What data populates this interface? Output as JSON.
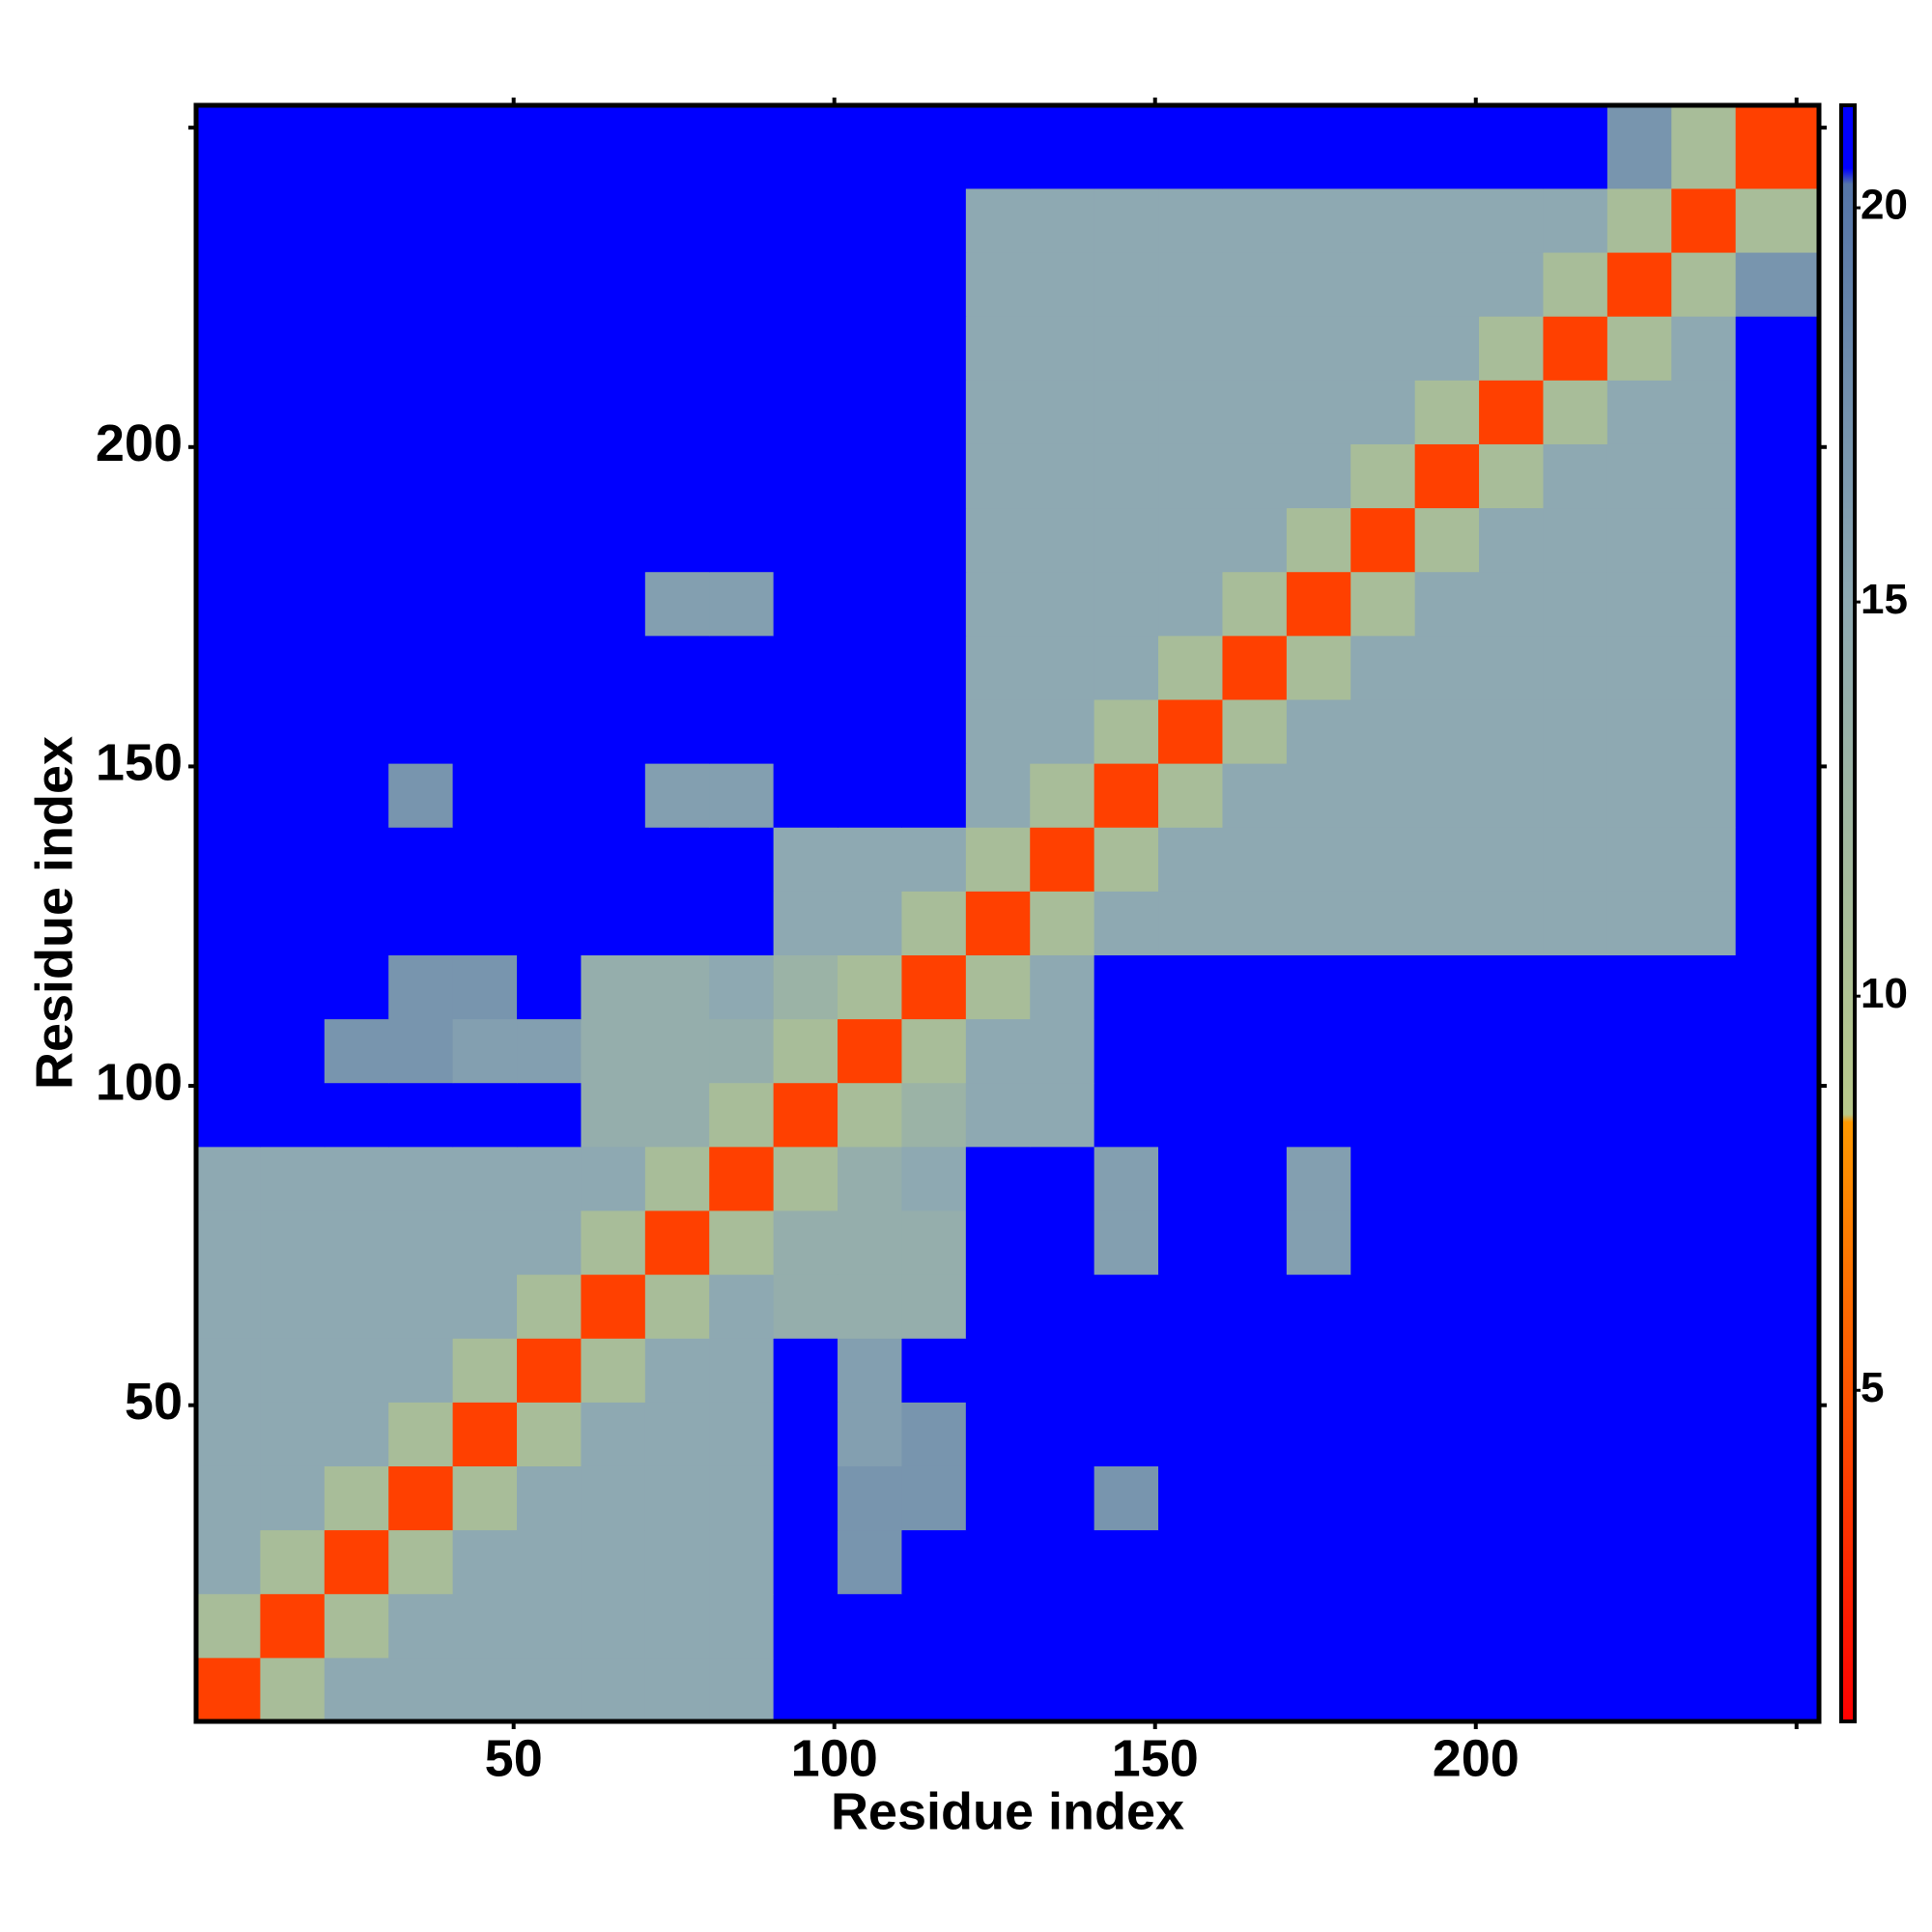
{
  "chart_data": {
    "type": "heatmap",
    "xlabel": "Residue index",
    "ylabel": "Residue index",
    "x_bins": [
      0.5,
      10.5,
      20.5,
      30.5,
      40.5,
      50.5,
      60.5,
      70.5,
      80.5,
      90.5,
      100.5,
      110.5,
      120.5,
      130.5,
      140.5,
      150.5,
      160.5,
      170.5,
      180.5,
      190.5,
      200.5,
      210.5,
      220.5,
      230.5,
      240.5,
      253.5
    ],
    "y_bins": [
      0.5,
      10.5,
      20.5,
      30.5,
      40.5,
      50.5,
      60.5,
      70.5,
      80.5,
      90.5,
      100.5,
      110.5,
      120.5,
      130.5,
      140.5,
      150.5,
      160.5,
      170.5,
      180.5,
      190.5,
      200.5,
      210.5,
      220.5,
      230.5,
      240.5,
      253.5
    ],
    "z": [
      [
        4,
        11,
        15,
        15,
        15,
        15,
        15,
        15,
        15,
        21,
        21,
        21,
        21,
        21,
        21,
        21,
        21,
        21,
        21,
        21,
        21,
        21,
        21,
        21,
        21
      ],
      [
        11,
        4,
        11,
        15,
        15,
        15,
        15,
        15,
        15,
        21,
        21,
        21,
        21,
        21,
        21,
        21,
        21,
        21,
        21,
        21,
        21,
        21,
        21,
        21,
        21
      ],
      [
        15,
        11,
        4,
        11,
        15,
        15,
        15,
        15,
        15,
        21,
        17,
        21,
        21,
        21,
        21,
        21,
        21,
        21,
        21,
        21,
        21,
        21,
        21,
        21,
        21
      ],
      [
        15,
        15,
        11,
        4,
        11,
        15,
        15,
        15,
        15,
        21,
        17,
        17,
        21,
        21,
        17,
        21,
        21,
        21,
        21,
        21,
        21,
        21,
        21,
        21,
        21
      ],
      [
        15,
        15,
        15,
        11,
        4,
        11,
        15,
        15,
        15,
        21,
        16,
        17,
        21,
        21,
        21,
        21,
        21,
        21,
        21,
        21,
        21,
        21,
        21,
        21,
        21
      ],
      [
        15,
        15,
        15,
        15,
        11,
        4,
        11,
        15,
        15,
        21,
        16,
        21,
        21,
        21,
        21,
        21,
        21,
        21,
        21,
        21,
        21,
        21,
        21,
        21,
        21
      ],
      [
        15,
        15,
        15,
        15,
        15,
        11,
        4,
        11,
        15,
        14,
        14,
        14,
        21,
        21,
        21,
        21,
        21,
        21,
        21,
        21,
        21,
        21,
        21,
        21,
        21
      ],
      [
        15,
        15,
        15,
        15,
        15,
        15,
        11,
        4,
        11,
        14,
        14,
        14,
        21,
        21,
        16,
        21,
        21,
        16,
        21,
        21,
        21,
        21,
        21,
        21,
        21
      ],
      [
        15,
        15,
        15,
        15,
        15,
        15,
        15,
        11,
        4,
        11,
        14,
        15,
        21,
        21,
        16,
        21,
        21,
        16,
        21,
        21,
        21,
        21,
        21,
        21,
        21
      ],
      [
        21,
        21,
        21,
        21,
        21,
        21,
        14,
        14,
        11,
        4,
        11,
        13,
        15,
        15,
        21,
        21,
        21,
        21,
        21,
        21,
        21,
        21,
        21,
        21,
        21
      ],
      [
        21,
        21,
        17,
        17,
        16,
        16,
        14,
        14,
        14,
        11,
        4,
        11,
        15,
        15,
        21,
        21,
        21,
        21,
        21,
        21,
        21,
        21,
        21,
        21,
        21
      ],
      [
        21,
        21,
        21,
        17,
        17,
        21,
        14,
        14,
        15,
        13,
        11,
        4,
        11,
        15,
        21,
        21,
        21,
        21,
        21,
        21,
        21,
        21,
        21,
        21,
        21
      ],
      [
        21,
        21,
        21,
        21,
        21,
        21,
        21,
        21,
        21,
        15,
        15,
        11,
        4,
        11,
        15,
        15,
        15,
        15,
        15,
        15,
        15,
        15,
        15,
        15,
        21
      ],
      [
        21,
        21,
        21,
        21,
        21,
        21,
        21,
        21,
        21,
        15,
        15,
        15,
        11,
        4,
        11,
        15,
        15,
        15,
        15,
        15,
        15,
        15,
        15,
        15,
        21
      ],
      [
        21,
        21,
        21,
        17,
        21,
        21,
        21,
        16,
        16,
        21,
        21,
        21,
        15,
        11,
        4,
        11,
        15,
        15,
        15,
        15,
        15,
        15,
        15,
        15,
        21
      ],
      [
        21,
        21,
        21,
        21,
        21,
        21,
        21,
        21,
        21,
        21,
        21,
        21,
        15,
        15,
        11,
        4,
        11,
        15,
        15,
        15,
        15,
        15,
        15,
        15,
        21
      ],
      [
        21,
        21,
        21,
        21,
        21,
        21,
        21,
        21,
        21,
        21,
        21,
        21,
        15,
        15,
        15,
        11,
        4,
        11,
        15,
        15,
        15,
        15,
        15,
        15,
        21
      ],
      [
        21,
        21,
        21,
        21,
        21,
        21,
        21,
        16,
        16,
        21,
        21,
        21,
        15,
        15,
        15,
        15,
        11,
        4,
        11,
        15,
        15,
        15,
        15,
        15,
        21
      ],
      [
        21,
        21,
        21,
        21,
        21,
        21,
        21,
        21,
        21,
        21,
        21,
        21,
        15,
        15,
        15,
        15,
        15,
        11,
        4,
        11,
        15,
        15,
        15,
        15,
        21
      ],
      [
        21,
        21,
        21,
        21,
        21,
        21,
        21,
        21,
        21,
        21,
        21,
        21,
        15,
        15,
        15,
        15,
        15,
        15,
        11,
        4,
        11,
        15,
        15,
        15,
        21
      ],
      [
        21,
        21,
        21,
        21,
        21,
        21,
        21,
        21,
        21,
        21,
        21,
        21,
        15,
        15,
        15,
        15,
        15,
        15,
        15,
        11,
        4,
        11,
        15,
        15,
        21
      ],
      [
        21,
        21,
        21,
        21,
        21,
        21,
        21,
        21,
        21,
        21,
        21,
        21,
        15,
        15,
        15,
        15,
        15,
        15,
        15,
        15,
        11,
        4,
        11,
        15,
        21
      ],
      [
        21,
        21,
        21,
        21,
        21,
        21,
        21,
        21,
        21,
        21,
        21,
        21,
        15,
        15,
        15,
        15,
        15,
        15,
        15,
        15,
        15,
        11,
        4,
        11,
        17
      ],
      [
        21,
        21,
        21,
        21,
        21,
        21,
        21,
        21,
        21,
        21,
        21,
        21,
        15,
        15,
        15,
        15,
        15,
        15,
        15,
        15,
        15,
        15,
        11,
        4,
        11
      ],
      [
        21,
        21,
        21,
        21,
        21,
        21,
        21,
        21,
        21,
        21,
        21,
        21,
        21,
        21,
        21,
        21,
        21,
        21,
        21,
        21,
        21,
        21,
        17,
        11,
        4
      ]
    ],
    "xlim": [
      0.5,
      253.5
    ],
    "ylim": [
      0.5,
      253.5
    ],
    "xticks": [
      50,
      100,
      150,
      200,
      {
        "value": 250,
        "label": null
      }
    ],
    "yticks": [
      50,
      100,
      150,
      200,
      {
        "value": 250,
        "label": null
      }
    ],
    "clim": [
      0.8,
      21.3
    ],
    "cticks": [
      5,
      10,
      15,
      20
    ],
    "colorscale": [
      [
        0.8,
        "#ff0000"
      ],
      [
        8.4,
        "#ff9900"
      ],
      [
        8.5,
        "#b9c98a"
      ],
      [
        15,
        "#8ea9b2"
      ],
      [
        20.3,
        "#5575a8"
      ],
      [
        20.5,
        "#0000ff"
      ]
    ]
  }
}
